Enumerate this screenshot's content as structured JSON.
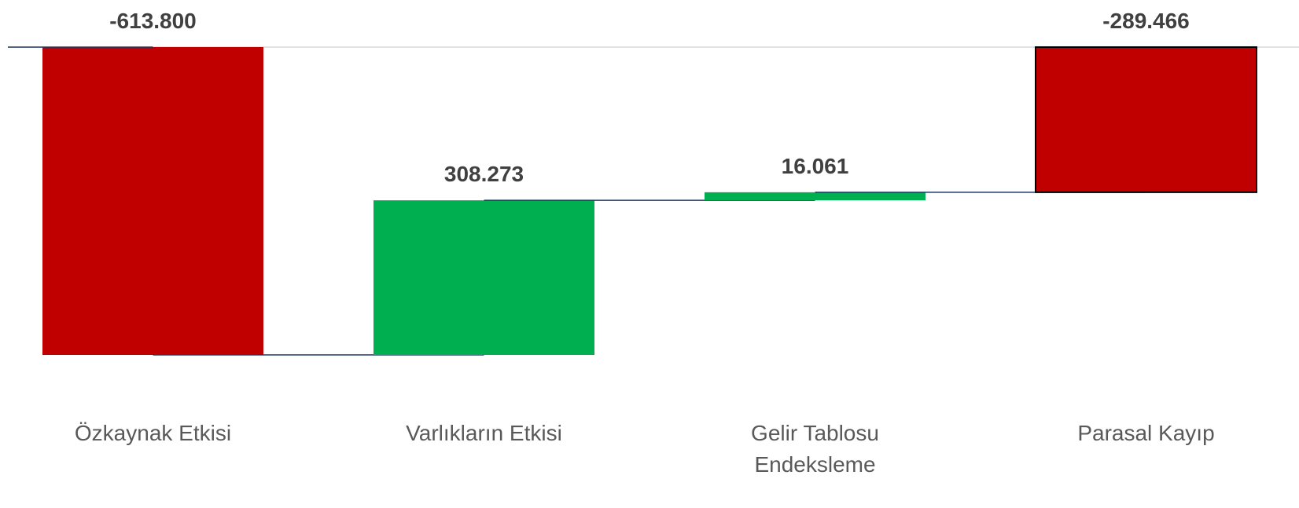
{
  "chart_data": {
    "type": "waterfall",
    "categories": [
      "Özkaynak Etkisi",
      "Varlıkların Etkisi",
      "Gelir Tablosu Endeksleme",
      "Parasal Kayıp"
    ],
    "values": [
      -613800,
      308273,
      16061,
      -289466
    ],
    "value_labels": [
      "-613.800",
      "308.273",
      "16.061",
      "-289.466"
    ],
    "totals": [
      false,
      false,
      false,
      true
    ],
    "colors": [
      "#c00000",
      "#00b050",
      "#00b050",
      "#c00000"
    ]
  }
}
